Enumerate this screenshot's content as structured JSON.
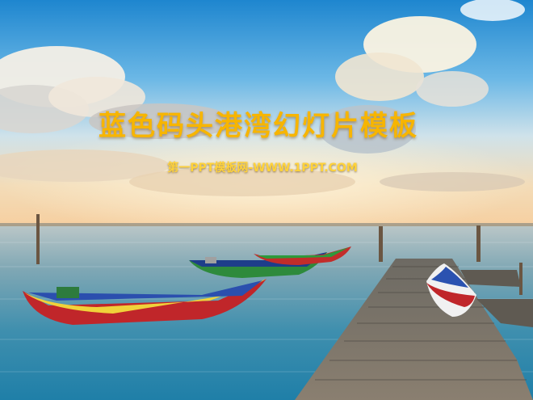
{
  "slide": {
    "title": "蓝色码头港湾幻灯片模板",
    "subtitle": "第一PPT模板网-WWW.1PPT.COM",
    "title_color": "#f7b500",
    "subtitle_color": "#ffd23a"
  },
  "scene": {
    "description_icons": [
      "sky",
      "clouds",
      "sea",
      "wooden-pier",
      "boats"
    ]
  }
}
